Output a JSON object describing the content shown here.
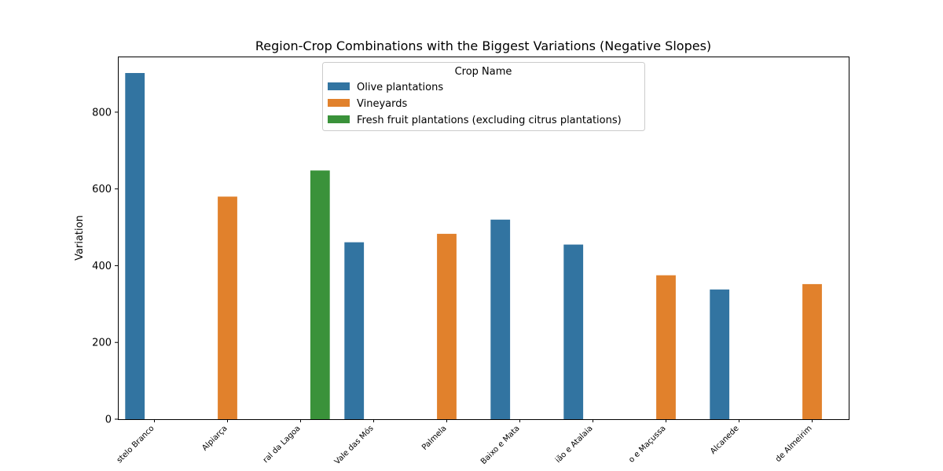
{
  "chart_data": {
    "type": "bar",
    "title": "Region-Crop Combinations with the Biggest Variations (Negative Slopes)",
    "xlabel": "",
    "ylabel": "Variation",
    "ylim": [
      0,
      945
    ],
    "yticks": [
      0,
      200,
      400,
      600,
      800
    ],
    "categories": [
      "stelo Branco",
      "Alpiarça",
      "ral da Lagoa",
      "Vale das Mós",
      "Palmela",
      "Baixo e Mata",
      "ião e Atalaia",
      "o e Maçussa",
      "Alcanede",
      "de Almeirim"
    ],
    "legend": {
      "title": "Crop Name",
      "placement": "top-center"
    },
    "series": [
      {
        "name": "Olive plantations",
        "color": "#3274a1",
        "values": [
          902,
          null,
          null,
          461,
          null,
          520,
          455,
          null,
          338,
          null
        ]
      },
      {
        "name": "Vineyards",
        "color": "#e1812c",
        "values": [
          null,
          580,
          null,
          null,
          483,
          null,
          null,
          375,
          null,
          352
        ]
      },
      {
        "name": "Fresh fruit plantations (excluding citrus plantations)",
        "color": "#3a923a",
        "values": [
          null,
          null,
          648,
          null,
          null,
          null,
          null,
          null,
          null,
          null
        ]
      }
    ],
    "grid": false
  }
}
